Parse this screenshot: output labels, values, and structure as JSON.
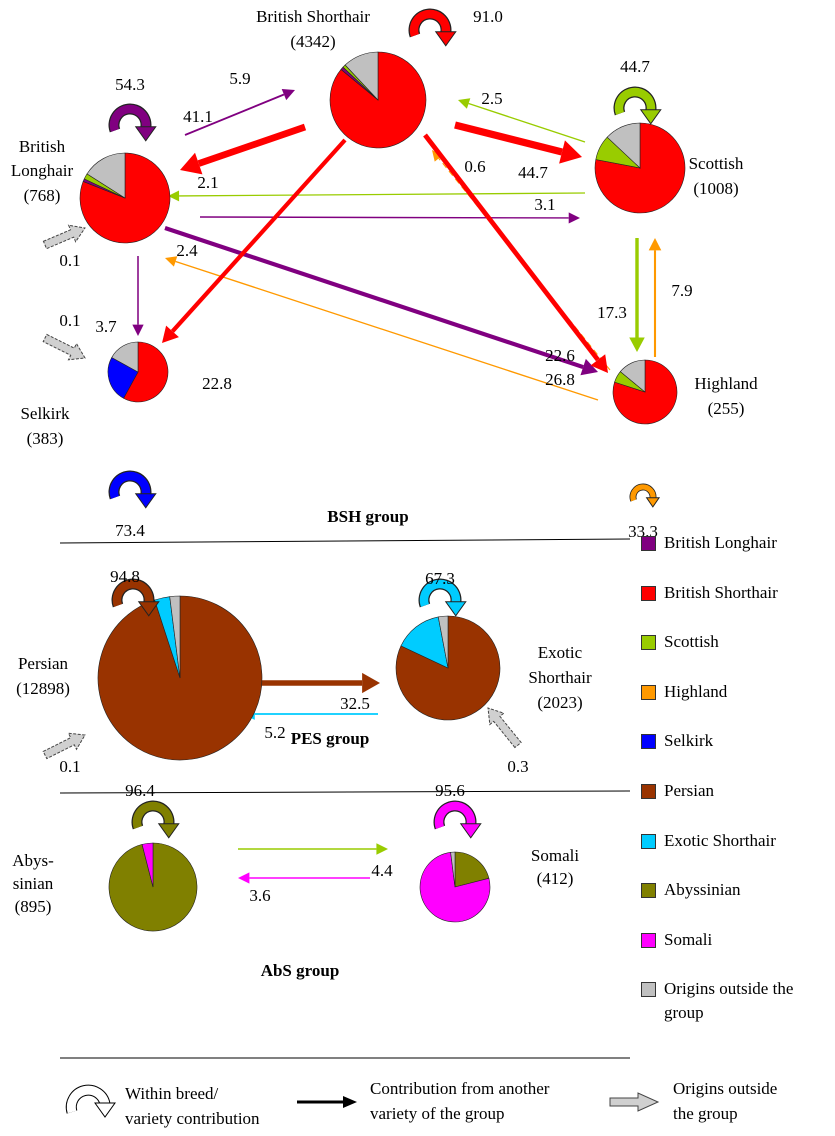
{
  "groups": [
    {
      "label": "BSH group",
      "nodes": [
        {
          "name": [
            "British Shorthair"
          ],
          "count": "(4342)",
          "within": {
            "value": 91.0,
            "label": "91.0"
          },
          "within_color": "#ff0000",
          "pie": [
            {
              "value": 86,
              "color": "#ff0000"
            },
            {
              "value": 1,
              "color": "#800080"
            },
            {
              "value": 1,
              "color": "#99cc00"
            },
            {
              "value": 12,
              "color": "#c0c0c0"
            }
          ]
        },
        {
          "name": [
            "British",
            "Longhair"
          ],
          "count": "(768)",
          "within": 54.3,
          "within_color": "#800080",
          "pie": [
            {
              "value": 81,
              "color": "#ff0000"
            },
            {
              "value": 1,
              "color": "#800080"
            },
            {
              "value": 2,
              "color": "#99cc00"
            },
            {
              "value": 16,
              "color": "#c0c0c0"
            }
          ]
        },
        {
          "name": [
            "Scottish"
          ],
          "count": "(1008)",
          "within": 44.7,
          "within_color": "#99cc00",
          "pie": [
            {
              "value": 78,
              "color": "#ff0000"
            },
            {
              "value": 9,
              "color": "#99cc00"
            },
            {
              "value": 13,
              "color": "#c0c0c0"
            }
          ]
        },
        {
          "name": [
            "Selkirk"
          ],
          "count": "(383)",
          "within": 73.4,
          "within_color": "#0000ff",
          "pie": [
            {
              "value": 58,
              "color": "#ff0000"
            },
            {
              "value": 25,
              "color": "#0000ff"
            },
            {
              "value": 17,
              "color": "#c0c0c0"
            }
          ]
        },
        {
          "name": [
            "Highland"
          ],
          "count": "(255)",
          "within": 33.3,
          "within_color": "#ff9900",
          "pie": [
            {
              "value": 80,
              "color": "#ff0000"
            },
            {
              "value": 6,
              "color": "#99cc00"
            },
            {
              "value": 14,
              "color": "#c0c0c0"
            }
          ]
        }
      ],
      "edges": [
        {
          "value": 5.9,
          "color": "#800080"
        },
        {
          "value": 41.1,
          "color": "#ff0000"
        },
        {
          "value": 2.5,
          "color": "#99cc00"
        },
        {
          "value": 44.7,
          "color": "#ff0000"
        },
        {
          "value": 0.6,
          "color": "#ff9900",
          "dashed": true
        },
        {
          "value": 2.1,
          "color": "#99cc00"
        },
        {
          "value": 3.1,
          "color": "#800080"
        },
        {
          "value": 2.4,
          "color": "#ff9900"
        },
        {
          "value": 7.9,
          "color": "#ff9900"
        },
        {
          "value": 17.3,
          "color": "#99cc00"
        },
        {
          "value": 3.7,
          "color": "#800080"
        },
        {
          "value": 22.6,
          "color": "#800080"
        },
        {
          "value": 22.8,
          "color": "#ff0000"
        },
        {
          "value": 26.8,
          "color": "#ff0000"
        }
      ],
      "outside": [
        {
          "value": 0.1
        },
        {
          "value": 0.1
        }
      ]
    },
    {
      "label": "PES group",
      "nodes": [
        {
          "name": [
            "Persian"
          ],
          "count": "(12898)",
          "within": 94.8,
          "within_color": "#993300",
          "pie": [
            {
              "value": 95,
              "color": "#993300"
            },
            {
              "value": 3,
              "color": "#00ccff"
            },
            {
              "value": 2,
              "color": "#c0c0c0"
            }
          ]
        },
        {
          "name": [
            "Exotic",
            "Shorthair"
          ],
          "count": "(2023)",
          "within": 67.3,
          "within_color": "#00ccff",
          "pie": [
            {
              "value": 82,
              "color": "#993300"
            },
            {
              "value": 15,
              "color": "#00ccff"
            },
            {
              "value": 3,
              "color": "#c0c0c0"
            }
          ]
        }
      ],
      "edges": [
        {
          "value": 32.5,
          "color": "#993300"
        },
        {
          "value": 5.2,
          "color": "#00ccff"
        }
      ],
      "outside": [
        {
          "value": 0.1
        },
        {
          "value": 0.3
        }
      ]
    },
    {
      "label": "AbS group",
      "nodes": [
        {
          "name": [
            "Abys-",
            "sinian"
          ],
          "count": "(895)",
          "within": 96.4,
          "within_color": "#808000",
          "pie": [
            {
              "value": 96,
              "color": "#808000"
            },
            {
              "value": 4,
              "color": "#ff00ff"
            }
          ]
        },
        {
          "name": [
            "Somali"
          ],
          "count": "(412)",
          "within": 95.6,
          "within_color": "#ff00ff",
          "pie": [
            {
              "value": 21,
              "color": "#808000"
            },
            {
              "value": 77,
              "color": "#ff00ff"
            },
            {
              "value": 2,
              "color": "#c0c0c0"
            }
          ]
        }
      ],
      "edges": [
        {
          "value": 4.4,
          "color": "#99cc00"
        },
        {
          "value": 3.6,
          "color": "#ff00ff"
        }
      ],
      "outside": []
    }
  ],
  "legend": [
    {
      "label": "British Longhair",
      "color": "#800080"
    },
    {
      "label": "British Shorthair",
      "color": "#ff0000"
    },
    {
      "label": "Scottish",
      "color": "#99cc00"
    },
    {
      "label": "Highland",
      "color": "#ff9900"
    },
    {
      "label": "Selkirk",
      "color": "#0000ff"
    },
    {
      "label": "Persian",
      "color": "#993300"
    },
    {
      "label": "Exotic Shorthair",
      "color": "#00ccff"
    },
    {
      "label": "Abyssinian",
      "color": "#808000"
    },
    {
      "label": "Somali",
      "color": "#ff00ff"
    },
    {
      "label": "Origins outside the group",
      "color": "#c0c0c0"
    }
  ],
  "key": [
    {
      "lines": [
        "Within breed/",
        "variety contribution"
      ]
    },
    {
      "lines": [
        "Contribution from another",
        "variety of the group"
      ]
    },
    {
      "lines": [
        "Origins outside",
        "the group"
      ]
    }
  ]
}
